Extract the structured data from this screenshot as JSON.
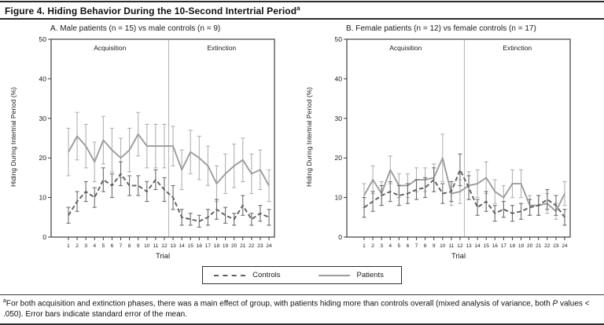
{
  "figure": {
    "title": "Figure 4. Hiding Behavior During the 10-Second Intertrial Period",
    "title_sup": "a"
  },
  "legend": {
    "controls_label": "Controls",
    "patients_label": "Patients",
    "position": "bottom-center"
  },
  "footnote": {
    "sup": "a",
    "text1": "For both acquisition and extinction phases, there was a main effect of group, with patients hiding more than controls overall (mixed analysis of variance, both ",
    "p_italic": "P",
    "text2": " values < .050). Error bars indicate standard error of the mean."
  },
  "colors": {
    "patients_line": "#9c9c9c",
    "controls_line": "#5f5f5f",
    "patients_error": "#b2b2b2",
    "controls_error": "#6e6e6e",
    "box_border": "#3c3c3c",
    "phase_divider": "#b8b8b8",
    "text": "#1a1a1a"
  },
  "chart_data": [
    {
      "type": "line",
      "panel_label": "A. Male patients (n = 15) vs male controls (n = 9)",
      "xlabel": "Trial",
      "ylabel": "Hiding During Intertrial Period (%)",
      "ylim": [
        0,
        50
      ],
      "yticks": [
        0,
        10,
        20,
        30,
        40,
        50
      ],
      "x": [
        1,
        2,
        3,
        4,
        5,
        6,
        7,
        8,
        9,
        10,
        11,
        12,
        13,
        14,
        15,
        16,
        17,
        18,
        19,
        20,
        21,
        22,
        23,
        24
      ],
      "divider_x": 12.5,
      "grid": false,
      "phases": [
        {
          "label": "Acquisition",
          "x_range": [
            1,
            12
          ]
        },
        {
          "label": "Extinction",
          "x_range": [
            13,
            24
          ]
        }
      ],
      "series": [
        {
          "name": "Patients",
          "style": "solid",
          "color": "#9c9c9c",
          "error_color": "#b2b2b2",
          "values": [
            21.5,
            25.5,
            23,
            19,
            24.5,
            22,
            20,
            22,
            26,
            23,
            23,
            23,
            23,
            17,
            21.5,
            20,
            18,
            13.5,
            16,
            18,
            19.5,
            16,
            17,
            13
          ],
          "errors": [
            6,
            6,
            5.5,
            5,
            6,
            5.5,
            5,
            5.5,
            5.5,
            5.5,
            5.5,
            5.5,
            5,
            5,
            5.5,
            5.5,
            5,
            4.5,
            5,
            5.5,
            5.5,
            5,
            5,
            4
          ]
        },
        {
          "name": "Controls",
          "style": "dashed",
          "color": "#5f5f5f",
          "error_color": "#6e6e6e",
          "values": [
            5.5,
            9,
            11.5,
            10,
            14.5,
            13,
            16,
            13,
            13,
            11.5,
            14.5,
            12,
            10,
            5,
            4.5,
            4,
            5,
            7,
            5.5,
            4.5,
            8,
            4.5,
            6,
            5
          ],
          "errors": [
            2,
            2.5,
            2.5,
            2.5,
            3,
            3,
            3,
            2.5,
            2.5,
            2.5,
            2.5,
            3,
            3,
            2,
            1.5,
            1.5,
            2,
            2.5,
            2,
            1.5,
            2.5,
            1.5,
            2,
            2
          ]
        }
      ]
    },
    {
      "type": "line",
      "panel_label": "B. Female patients (n = 12) vs female controls (n = 17)",
      "xlabel": "Trial",
      "ylabel": "Hiding During Intertrial Period (%)",
      "ylim": [
        0,
        50
      ],
      "yticks": [
        0,
        10,
        20,
        30,
        40,
        50
      ],
      "x": [
        1,
        2,
        3,
        4,
        5,
        6,
        7,
        8,
        9,
        10,
        11,
        12,
        13,
        14,
        15,
        16,
        17,
        18,
        19,
        20,
        21,
        22,
        23,
        24
      ],
      "divider_x": 12.5,
      "grid": false,
      "phases": [
        {
          "label": "Acquisition",
          "x_range": [
            1,
            12
          ]
        },
        {
          "label": "Extinction",
          "x_range": [
            13,
            24
          ]
        }
      ],
      "series": [
        {
          "name": "Patients",
          "style": "solid",
          "color": "#9c9c9c",
          "error_color": "#b2b2b2",
          "values": [
            10.5,
            14.5,
            11,
            17,
            13,
            13,
            14.5,
            14.5,
            15,
            20,
            11,
            11.5,
            13,
            13.5,
            15,
            11.5,
            10,
            13.5,
            13.5,
            8,
            8,
            8.5,
            6.5,
            11
          ],
          "errors": [
            3,
            3.5,
            3,
            3.5,
            3,
            3,
            3,
            3,
            3.5,
            6,
            3,
            3,
            3.5,
            3.5,
            4,
            3,
            3,
            3.5,
            3.5,
            2.5,
            2.5,
            2.5,
            2,
            3
          ]
        },
        {
          "name": "Controls",
          "style": "dashed",
          "color": "#5f5f5f",
          "error_color": "#6e6e6e",
          "values": [
            7.5,
            9,
            10.5,
            11.5,
            10.5,
            11,
            12,
            12.5,
            14.5,
            11,
            11.5,
            17,
            12.5,
            7.5,
            9,
            6,
            7,
            6,
            6.5,
            7.5,
            8,
            9.5,
            8,
            5
          ],
          "errors": [
            2.5,
            2.5,
            2.5,
            2.5,
            2.5,
            2.5,
            2.5,
            2.5,
            3,
            2.5,
            2.5,
            4,
            3,
            2,
            2.5,
            2,
            2,
            2,
            2,
            2,
            2.5,
            2.5,
            2.5,
            2
          ]
        }
      ]
    }
  ]
}
